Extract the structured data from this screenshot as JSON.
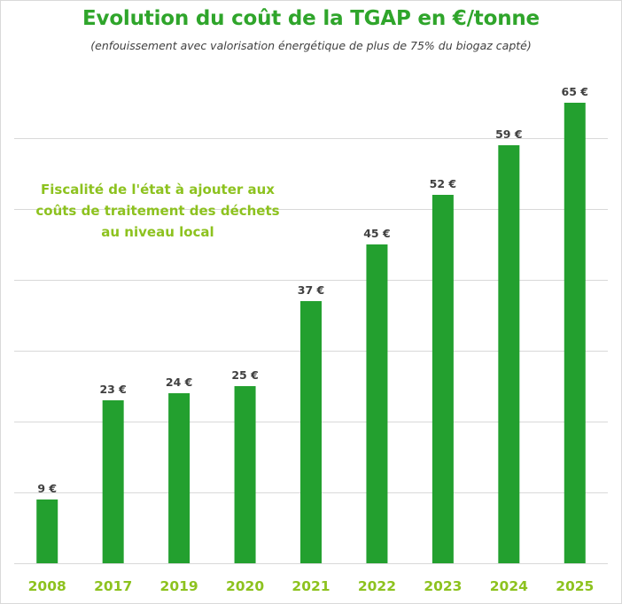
{
  "chart_data": {
    "type": "bar",
    "title": "Evolution du coût de la TGAP en €/tonne",
    "subtitle": "(enfouissement avec valorisation énergétique de plus de 75% du biogaz capté)",
    "annotation": "Fiscalité de l'état à ajouter aux\ncoûts de traitement des déchets\nau niveau local",
    "categories": [
      "2008",
      "2017",
      "2019",
      "2020",
      "2021",
      "2022",
      "2023",
      "2024",
      "2025"
    ],
    "values": [
      9,
      23,
      24,
      25,
      37,
      45,
      52,
      59,
      65
    ],
    "value_labels": [
      "9 €",
      "23 €",
      "24 €",
      "25 €",
      "37 €",
      "45 €",
      "52 €",
      "59 €",
      "65 €"
    ],
    "xlabel": "",
    "ylabel": "",
    "ylim": [
      0,
      70
    ],
    "y_gridline_step": 10,
    "y_axis_labels_shown": false,
    "grid": true,
    "legend": "none",
    "colors": {
      "bar": "#23a02f",
      "title": "#2fa52b",
      "tick_labels": "#8dc21f",
      "annotation": "#8dc21f",
      "data_labels": "#404040",
      "gridlines": "#d9d9d9"
    }
  }
}
